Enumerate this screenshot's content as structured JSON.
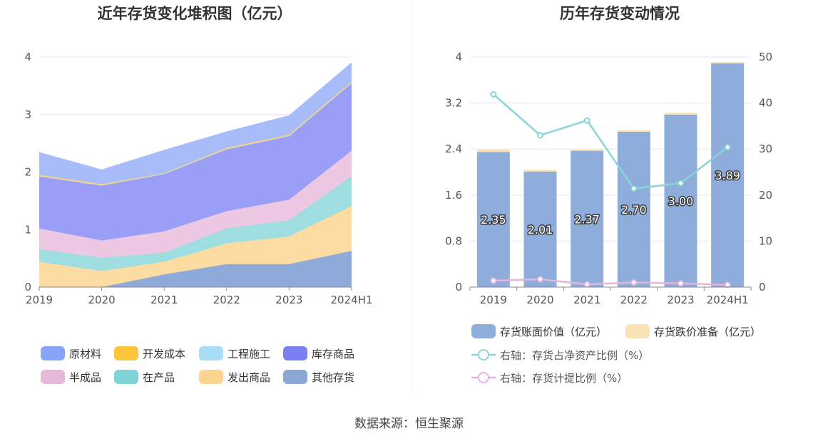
{
  "charts": [
    {
      "title": "近年存货变化堆积图（亿元）",
      "type": "area",
      "categories": [
        "2019",
        "2020",
        "2021",
        "2022",
        "2023",
        "2024H1"
      ],
      "ylim": [
        0,
        4
      ],
      "yticks": [
        "0",
        "1",
        "2",
        "3",
        "4"
      ],
      "legend_position": "bottom",
      "series": [
        {
          "name": "其他存货",
          "color": "#8eaad8",
          "values": [
            0.0,
            0.0,
            0.22,
            0.4,
            0.4,
            0.63
          ]
        },
        {
          "name": "发出商品",
          "color": "#fcdca0",
          "values": [
            0.44,
            0.28,
            0.22,
            0.36,
            0.48,
            0.78
          ]
        },
        {
          "name": "在产品",
          "color": "#9fdee0",
          "values": [
            0.22,
            0.23,
            0.16,
            0.26,
            0.28,
            0.52
          ]
        },
        {
          "name": "半成品",
          "color": "#edc8e2",
          "values": [
            0.36,
            0.3,
            0.37,
            0.3,
            0.36,
            0.44
          ]
        },
        {
          "name": "库存商品",
          "color": "#9b9ef6",
          "values": [
            0.91,
            0.96,
            1.0,
            1.08,
            1.11,
            1.18
          ]
        },
        {
          "name": "工程施工",
          "color": "#bfe6f9",
          "values": [
            0.0,
            0.0,
            0.0,
            0.0,
            0.0,
            0.0
          ]
        },
        {
          "name": "开发成本",
          "color": "#fdd46a",
          "values": [
            0.02,
            0.02,
            0.01,
            0.02,
            0.02,
            0.02
          ]
        },
        {
          "name": "原材料",
          "color": "#a9bcfa",
          "values": [
            0.39,
            0.25,
            0.4,
            0.28,
            0.33,
            0.33
          ]
        }
      ],
      "legend": [
        {
          "name": "原材料",
          "color": "#86a5f8"
        },
        {
          "name": "开发成本",
          "color": "#fcc63c"
        },
        {
          "name": "工程施工",
          "color": "#a9dcf7"
        },
        {
          "name": "库存商品",
          "color": "#7a7ff1"
        },
        {
          "name": "半成品",
          "color": "#e7b9d9"
        },
        {
          "name": "在产品",
          "color": "#7fd5d6"
        },
        {
          "name": "发出商品",
          "color": "#fbd58f"
        },
        {
          "name": "其他存货",
          "color": "#8aa7d5"
        }
      ]
    },
    {
      "title": "历年存货变动情况",
      "type": "bar+line",
      "categories": [
        "2019",
        "2020",
        "2021",
        "2022",
        "2023",
        "2024H1"
      ],
      "ylim_left": [
        0,
        4
      ],
      "yticks_left": [
        "0",
        "0.8",
        "1.6",
        "2.4",
        "3.2",
        "4"
      ],
      "ylim_right": [
        0,
        50
      ],
      "yticks_right": [
        "0",
        "10",
        "20",
        "30",
        "40",
        "50"
      ],
      "legend_position": "bottom",
      "bars": [
        {
          "name": "存货账面价值（亿元）",
          "color": "#8eaddb",
          "values": [
            2.35,
            2.01,
            2.37,
            2.7,
            3.0,
            3.89
          ],
          "labels": [
            "2.35",
            "2.01",
            "2.37",
            "2.70",
            "3.00",
            "3.89"
          ]
        },
        {
          "name": "存货跌价准备（亿元）",
          "color": "#fbe3b8",
          "values": [
            0.04,
            0.03,
            0.02,
            0.03,
            0.03,
            0.02
          ]
        }
      ],
      "lines": [
        {
          "name": "右轴：存货占净资产比例（%）",
          "color": "#8ad3d7",
          "axis": "right",
          "values": [
            41.9,
            33.0,
            36.2,
            21.4,
            22.6,
            30.4
          ]
        },
        {
          "name": "右轴：存货计提比例（%）",
          "color": "#e4b5dc",
          "axis": "right",
          "values": [
            1.4,
            1.7,
            0.6,
            1.0,
            0.8,
            0.5
          ]
        }
      ]
    }
  ],
  "source": "数据来源：恒生聚源"
}
